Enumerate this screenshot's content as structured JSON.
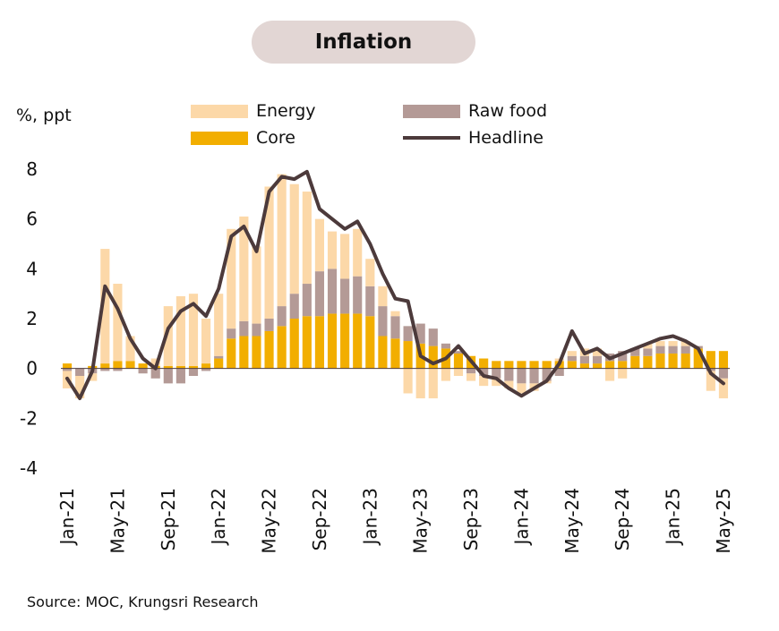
{
  "chart_data": {
    "type": "bar",
    "title": "Inflation",
    "ylabel": "%, ppt",
    "ylim": [
      -4,
      8
    ],
    "yticks": [
      -4,
      -2,
      0,
      2,
      4,
      6,
      8
    ],
    "x": [
      "Jan-21",
      "Feb-21",
      "Mar-21",
      "Apr-21",
      "May-21",
      "Jun-21",
      "Jul-21",
      "Aug-21",
      "Sep-21",
      "Oct-21",
      "Nov-21",
      "Dec-21",
      "Jan-22",
      "Feb-22",
      "Mar-22",
      "Apr-22",
      "May-22",
      "Jun-22",
      "Jul-22",
      "Aug-22",
      "Sep-22",
      "Oct-22",
      "Nov-22",
      "Dec-22",
      "Jan-23",
      "Feb-23",
      "Mar-23",
      "Apr-23",
      "May-23",
      "Jun-23",
      "Jul-23",
      "Aug-23",
      "Sep-23",
      "Oct-23",
      "Nov-23",
      "Dec-23",
      "Jan-24",
      "Feb-24",
      "Mar-24",
      "Apr-24",
      "May-24",
      "Jun-24",
      "Jul-24",
      "Aug-24",
      "Sep-24",
      "Oct-24",
      "Nov-24",
      "Dec-24",
      "Jan-25",
      "Feb-25",
      "Mar-25",
      "Apr-25",
      "May-25"
    ],
    "xtick_labels": [
      "Jan-21",
      "May-21",
      "Sep-21",
      "Jan-22",
      "May-22",
      "Sep-22",
      "Jan-23",
      "May-23",
      "Sep-23",
      "Jan-24",
      "May-24",
      "Sep-24",
      "Jan-25",
      "May-25"
    ],
    "series": [
      {
        "name": "Core",
        "kind": "bar",
        "color": "#f2ae00",
        "values": [
          0.2,
          0.0,
          0.1,
          0.2,
          0.3,
          0.3,
          0.2,
          0.1,
          0.1,
          0.1,
          0.1,
          0.2,
          0.4,
          1.2,
          1.3,
          1.3,
          1.5,
          1.7,
          2.0,
          2.1,
          2.1,
          2.2,
          2.2,
          2.2,
          2.1,
          1.3,
          1.2,
          1.1,
          1.0,
          0.9,
          0.8,
          0.6,
          0.5,
          0.4,
          0.3,
          0.3,
          0.3,
          0.3,
          0.3,
          0.3,
          0.3,
          0.2,
          0.2,
          0.3,
          0.3,
          0.5,
          0.5,
          0.6,
          0.6,
          0.6,
          0.8,
          0.7,
          0.7
        ]
      },
      {
        "name": "Raw food",
        "kind": "bar",
        "color": "#b49a96",
        "values": [
          -0.1,
          -0.3,
          -0.2,
          -0.1,
          -0.1,
          0.0,
          -0.2,
          -0.4,
          -0.6,
          -0.6,
          -0.3,
          -0.1,
          0.1,
          0.4,
          0.6,
          0.5,
          0.5,
          0.8,
          1.0,
          1.3,
          1.8,
          1.8,
          1.4,
          1.5,
          1.2,
          1.2,
          0.9,
          0.6,
          0.8,
          0.7,
          0.2,
          0.1,
          -0.2,
          -0.3,
          -0.4,
          -0.5,
          -0.6,
          -0.6,
          -0.5,
          -0.3,
          0.2,
          0.3,
          0.3,
          0.3,
          0.4,
          0.3,
          0.3,
          0.3,
          0.3,
          0.3,
          0.1,
          -0.1,
          -0.4
        ]
      },
      {
        "name": "Energy",
        "kind": "bar",
        "color": "#fcd8a8",
        "values": [
          -0.7,
          -0.9,
          -0.3,
          4.6,
          3.1,
          1.0,
          0.0,
          0.3,
          2.4,
          2.8,
          2.9,
          1.8,
          2.5,
          4.0,
          4.2,
          3.1,
          5.3,
          5.3,
          4.4,
          3.7,
          2.1,
          1.5,
          1.8,
          1.9,
          1.1,
          0.8,
          0.2,
          -1.0,
          -1.2,
          -1.2,
          -0.5,
          -0.3,
          -0.3,
          -0.4,
          -0.3,
          -0.3,
          -0.4,
          -0.3,
          -0.1,
          0.1,
          0.2,
          0.3,
          0.3,
          -0.5,
          -0.4,
          0.0,
          0.2,
          0.2,
          0.2,
          0.2,
          0.0,
          -0.8,
          -0.8
        ]
      },
      {
        "name": "Headline",
        "kind": "line",
        "color": "#4c3a3b",
        "values": [
          -0.4,
          -1.2,
          -0.1,
          3.3,
          2.4,
          1.2,
          0.4,
          0.0,
          1.6,
          2.3,
          2.6,
          2.1,
          3.2,
          5.3,
          5.7,
          4.7,
          7.1,
          7.7,
          7.6,
          7.9,
          6.4,
          6.0,
          5.6,
          5.9,
          5.0,
          3.8,
          2.8,
          2.7,
          0.5,
          0.2,
          0.4,
          0.9,
          0.3,
          -0.3,
          -0.4,
          -0.8,
          -1.1,
          -0.8,
          -0.5,
          0.2,
          1.5,
          0.6,
          0.8,
          0.4,
          0.6,
          0.8,
          1.0,
          1.2,
          1.3,
          1.1,
          0.8,
          -0.2,
          -0.6
        ]
      }
    ],
    "legend_placement": "top",
    "grid": false
  },
  "labels": {
    "title": "Inflation",
    "unit": "%, ppt",
    "source": "Source: MOC, Krungsri Research"
  },
  "legend": [
    {
      "label": "Energy",
      "color": "#fcd8a8",
      "kind": "bar"
    },
    {
      "label": "Raw food",
      "color": "#b49a96",
      "kind": "bar"
    },
    {
      "label": "Core",
      "color": "#f2ae00",
      "kind": "bar"
    },
    {
      "label": "Headline",
      "color": "#4c3a3b",
      "kind": "line"
    }
  ]
}
